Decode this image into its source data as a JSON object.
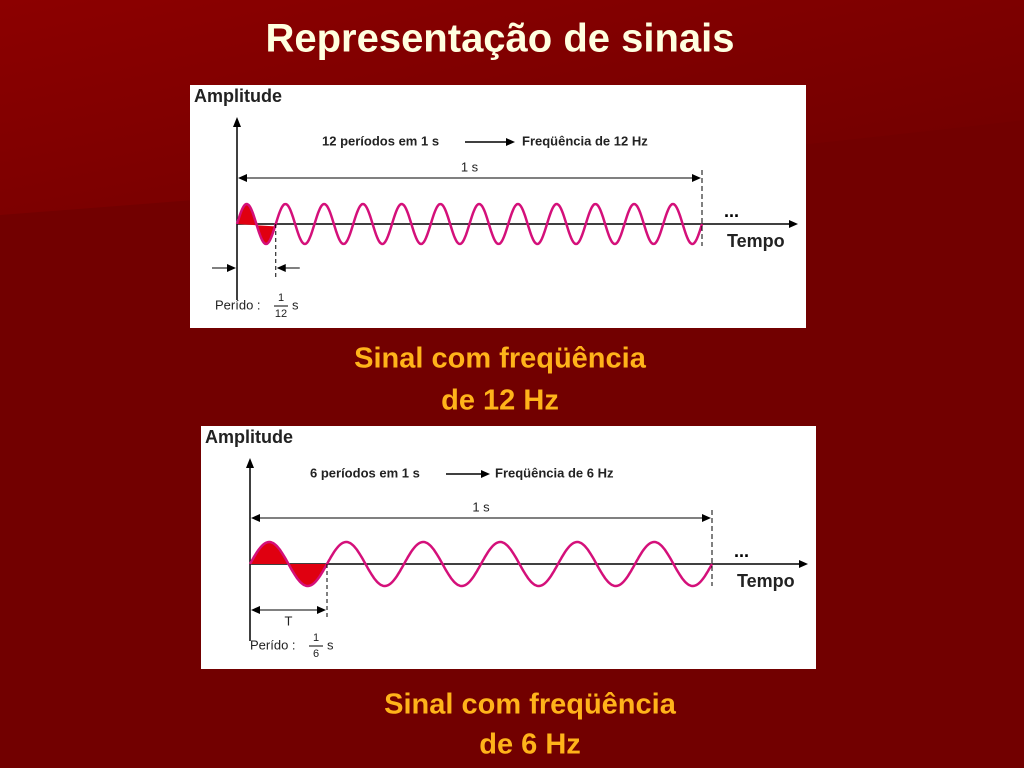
{
  "title": "Representação de sinais",
  "panels": [
    {
      "axis_label": "Amplitude",
      "note": "12 períodos em 1 s",
      "note_result": "Freqüência de 12 Hz",
      "span_label": "1 s",
      "ellipsis": "...",
      "time_label": "Tempo",
      "period": {
        "label": "Perído :",
        "numerator": 1,
        "denominator": 12,
        "unit": "s"
      },
      "caption": [
        "Sinal com freqüência",
        "de 12 Hz"
      ]
    },
    {
      "axis_label": "Amplitude",
      "note": "6 períodos em 1 s",
      "note_result": "Freqüência de 6 Hz",
      "span_label": "1 s",
      "ellipsis": "...",
      "time_label": "Tempo",
      "period_mark": "T",
      "period": {
        "label": "Perído :",
        "numerator": 1,
        "denominator": 6,
        "unit": "s"
      },
      "caption": [
        "Sinal com freqüência",
        "de 6 Hz"
      ]
    }
  ]
}
